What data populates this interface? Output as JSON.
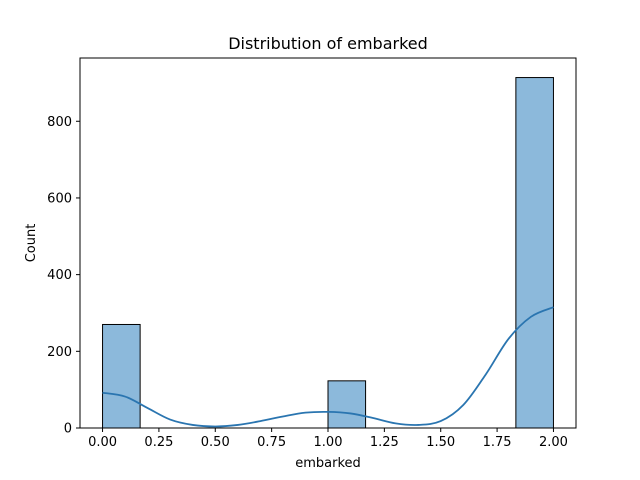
{
  "chart_data": {
    "type": "bar",
    "title": "Distribution of embarked",
    "xlabel": "embarked",
    "ylabel": "Count",
    "xlim": [
      -0.1,
      2.1
    ],
    "ylim": [
      0,
      965
    ],
    "xticks": [
      0.0,
      0.25,
      0.5,
      0.75,
      1.0,
      1.25,
      1.5,
      1.75,
      2.0
    ],
    "xtick_labels": [
      "0.00",
      "0.25",
      "0.50",
      "0.75",
      "1.00",
      "1.25",
      "1.50",
      "1.75",
      "2.00"
    ],
    "yticks": [
      0,
      200,
      400,
      600,
      800
    ],
    "ytick_labels": [
      "0",
      "200",
      "400",
      "600",
      "800"
    ],
    "bars": [
      {
        "x0": 0.0,
        "x1": 0.1667,
        "value": 270
      },
      {
        "x0": 1.0,
        "x1": 1.1667,
        "value": 123
      },
      {
        "x0": 1.8333,
        "x1": 2.0,
        "value": 914
      }
    ],
    "kde_line": {
      "x": [
        0.0,
        0.1,
        0.2,
        0.3,
        0.4,
        0.5,
        0.6,
        0.7,
        0.8,
        0.9,
        1.0,
        1.1,
        1.2,
        1.3,
        1.4,
        1.5,
        1.6,
        1.7,
        1.8,
        1.9,
        2.0
      ],
      "y": [
        92,
        82,
        52,
        22,
        8,
        4,
        8,
        18,
        30,
        40,
        42,
        38,
        26,
        12,
        8,
        18,
        60,
        140,
        232,
        290,
        315
      ]
    },
    "bar_color": "#8cb9db",
    "bar_edge_color": "#000000",
    "line_color": "#2a75b0",
    "grid": false,
    "legend": "none"
  }
}
